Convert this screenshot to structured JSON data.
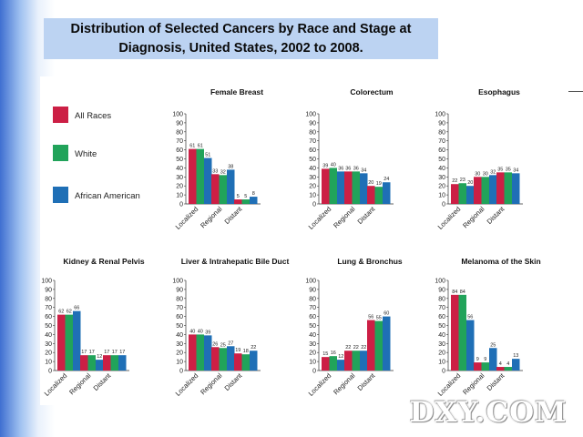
{
  "slide": {
    "title_line1": "Distribution of Selected Cancers by Race and Stage at",
    "title_line2": "Diagnosis, United States, 2002 to 2008.",
    "watermark": "DXY.COM"
  },
  "legend": [
    {
      "label": "All Races",
      "color": "#cc1f45"
    },
    {
      "label": "White",
      "color": "#21a35a"
    },
    {
      "label": "African American",
      "color": "#1f6fb6"
    }
  ],
  "chart_data": {
    "type": "bar",
    "ylim": [
      0,
      100
    ],
    "yticks": [
      "0",
      "10",
      "20",
      "30",
      "40",
      "50",
      "60",
      "70",
      "80",
      "90",
      "100"
    ],
    "categories": [
      "Localized",
      "Regional",
      "Distant"
    ],
    "series_names": [
      "All Races",
      "White",
      "African American"
    ],
    "panels": [
      {
        "title": "Female Breast",
        "values": [
          [
            61,
            61,
            51
          ],
          [
            33,
            32,
            38
          ],
          [
            5,
            5,
            8
          ]
        ]
      },
      {
        "title": "Colorectum",
        "values": [
          [
            39,
            40,
            36
          ],
          [
            36,
            36,
            34
          ],
          [
            20,
            19,
            24
          ]
        ]
      },
      {
        "title": "Esophagus",
        "values": [
          [
            22,
            23,
            20
          ],
          [
            30,
            30,
            32
          ],
          [
            35,
            35,
            34
          ]
        ]
      },
      {
        "title": "Kidney & Renal Pelvis",
        "values": [
          [
            62,
            62,
            66
          ],
          [
            17,
            17,
            12
          ],
          [
            17,
            17,
            17
          ]
        ]
      },
      {
        "title": "Liver & Intrahepatic Bile Duct",
        "values": [
          [
            40,
            40,
            39
          ],
          [
            26,
            25,
            27
          ],
          [
            19,
            18,
            22
          ]
        ]
      },
      {
        "title": "Lung & Bronchus",
        "values": [
          [
            15,
            16,
            12
          ],
          [
            22,
            22,
            22
          ],
          [
            56,
            55,
            60
          ]
        ]
      },
      {
        "title": "Melanoma of the Skin",
        "values": [
          [
            84,
            84,
            56
          ],
          [
            9,
            9,
            25
          ],
          [
            4,
            4,
            13
          ]
        ]
      }
    ]
  }
}
